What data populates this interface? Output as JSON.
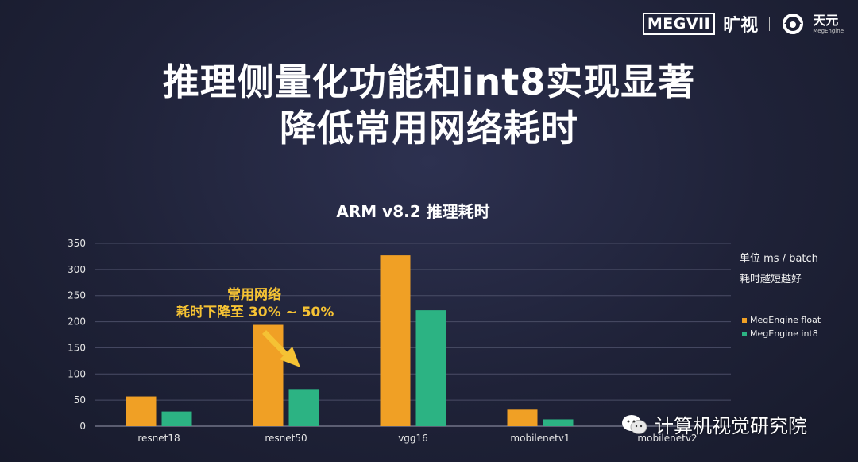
{
  "logo": {
    "megvii": "MEGVII",
    "kuangshi": "旷视",
    "tianyuan_cn": "天元",
    "tianyuan_en": "MegEngine"
  },
  "title": {
    "line1": "推理侧量化功能和int8实现显著",
    "line2": "降低常用网络耗时"
  },
  "notes": {
    "unit": "单位 ms / batch",
    "hint": "耗时越短越好"
  },
  "annotation": {
    "line1": "常用网络",
    "line2": "耗时下降至 30% ~ 50%"
  },
  "watermark": "计算机视觉研究院",
  "colors": {
    "float": "#f0a025",
    "int8": "#2cb383"
  },
  "chart_data": {
    "type": "bar",
    "title": "ARM v8.2 推理耗时",
    "categories": [
      "resnet18",
      "resnet50",
      "vgg16",
      "mobilenetv1",
      "mobilenetv2"
    ],
    "series": [
      {
        "name": "MegEngine float",
        "values": [
          57,
          194,
          327,
          33,
          null
        ]
      },
      {
        "name": "MegEngine int8",
        "values": [
          28,
          71,
          222,
          13,
          null
        ]
      }
    ],
    "ylim": [
      0,
      350
    ],
    "yticks": [
      0,
      50,
      100,
      150,
      200,
      250,
      300,
      350
    ],
    "grid": true,
    "legend": "right"
  }
}
